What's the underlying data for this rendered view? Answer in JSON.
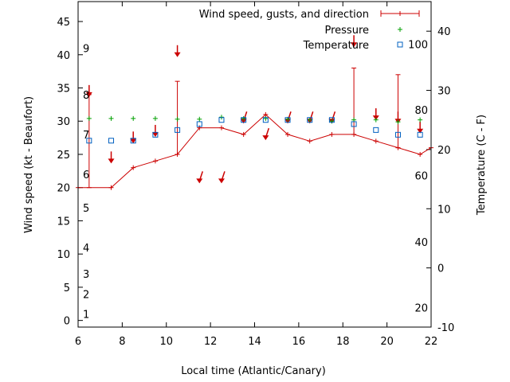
{
  "chart_data": {
    "type": "line",
    "xlabel": "Local time (Atlantic/Canary)",
    "ylabel": "Wind speed (kt - Beaufort)",
    "y2label": "Temperature (C - F)",
    "xlim": [
      6,
      22
    ],
    "ylim": [
      -1,
      48
    ],
    "y2lim": [
      -10,
      45
    ],
    "x_ticks": [
      "6",
      "8",
      "10",
      "12",
      "14",
      "16",
      "18",
      "20",
      "22"
    ],
    "y_ticks": [
      "0",
      "5",
      "10",
      "15",
      "20",
      "25",
      "30",
      "35",
      "40",
      "45"
    ],
    "y2_ticks": [
      "-10",
      "0",
      "10",
      "20",
      "30",
      "40"
    ],
    "beaufort_labels": [
      {
        "text": "1",
        "y": 1
      },
      {
        "text": "2",
        "y": 4
      },
      {
        "text": "3",
        "y": 7
      },
      {
        "text": "4",
        "y": 11
      },
      {
        "text": "5",
        "y": 17
      },
      {
        "text": "6",
        "y": 22
      },
      {
        "text": "7",
        "y": 28
      },
      {
        "text": "8",
        "y": 34
      },
      {
        "text": "9",
        "y": 41
      }
    ],
    "fahrenheit_labels": [
      {
        "text": "20",
        "y2": -6.7
      },
      {
        "text": "40",
        "y2": 4.4
      },
      {
        "text": "60",
        "y2": 15.6
      },
      {
        "text": "80",
        "y2": 26.7
      },
      {
        "text": "100",
        "y2": 37.8
      }
    ],
    "legend_position": "top-right",
    "series": [
      {
        "name": "Wind speed, gusts, and direction",
        "color": "#cc0000",
        "x": [
          6,
          7.5,
          8.5,
          9.5,
          10.5,
          11.5,
          12.5,
          13.5,
          14.5,
          15.5,
          16.5,
          17.5,
          18.5,
          19.5,
          20.5,
          21.5,
          22
        ],
        "y": [
          20,
          20,
          23,
          24,
          25,
          29,
          29,
          28,
          31,
          28,
          27,
          28,
          28,
          27,
          26,
          25,
          26
        ],
        "gusts": [
          {
            "x": 6.5,
            "low": 20,
            "high": 34
          },
          {
            "x": 10.5,
            "low": 25,
            "high": 36
          },
          {
            "x": 18.5,
            "low": 28,
            "high": 38
          },
          {
            "x": 20.5,
            "low": 26,
            "high": 37
          }
        ],
        "direction_arrows": [
          {
            "x": 6.5,
            "y": 34,
            "dir": "north"
          },
          {
            "x": 7.5,
            "y": 24,
            "dir": "north"
          },
          {
            "x": 8.5,
            "y": 27,
            "dir": "north"
          },
          {
            "x": 9.5,
            "y": 28,
            "dir": "north"
          },
          {
            "x": 10.5,
            "y": 40,
            "dir": "north"
          },
          {
            "x": 11.5,
            "y": 21,
            "dir": "northeast"
          },
          {
            "x": 12.5,
            "y": 21,
            "dir": "northeast"
          },
          {
            "x": 13.5,
            "y": 30,
            "dir": "northeast"
          },
          {
            "x": 14.5,
            "y": 27.5,
            "dir": "northeast"
          },
          {
            "x": 15.5,
            "y": 30,
            "dir": "northeast"
          },
          {
            "x": 16.5,
            "y": 30,
            "dir": "northeast"
          },
          {
            "x": 17.5,
            "y": 30,
            "dir": "northeast"
          },
          {
            "x": 18.5,
            "y": 41.5,
            "dir": "north"
          },
          {
            "x": 19.5,
            "y": 30.5,
            "dir": "north"
          },
          {
            "x": 20.5,
            "y": 30,
            "dir": "north"
          },
          {
            "x": 21.5,
            "y": 28.5,
            "dir": "north"
          }
        ]
      },
      {
        "name": "Pressure",
        "color": "#00a000",
        "x": [
          6.5,
          7.5,
          8.5,
          9.5,
          10.5,
          11.5,
          12.5,
          13.5,
          14.5,
          15.5,
          16.5,
          17.5,
          18.5,
          19.5,
          20.5,
          21.5
        ],
        "y": [
          30.4,
          30.4,
          30.4,
          30.4,
          30.3,
          30.3,
          30.6,
          30.4,
          30.4,
          30.3,
          30.2,
          30.0,
          30.2,
          30.2,
          29.9,
          30.2
        ]
      },
      {
        "name": "Temperature",
        "color": "#0060c0",
        "x": [
          6.5,
          7.5,
          8.5,
          9.5,
          10.5,
          11.5,
          12.5,
          13.5,
          14.5,
          15.5,
          16.5,
          17.5,
          18.5,
          19.5,
          20.5,
          21.5
        ],
        "y2": [
          21.5,
          21.5,
          21.5,
          22.5,
          23.3,
          24.3,
          25.0,
          25.0,
          25.0,
          25.0,
          25.0,
          25.0,
          24.3,
          23.3,
          22.5,
          22.5
        ]
      }
    ]
  }
}
